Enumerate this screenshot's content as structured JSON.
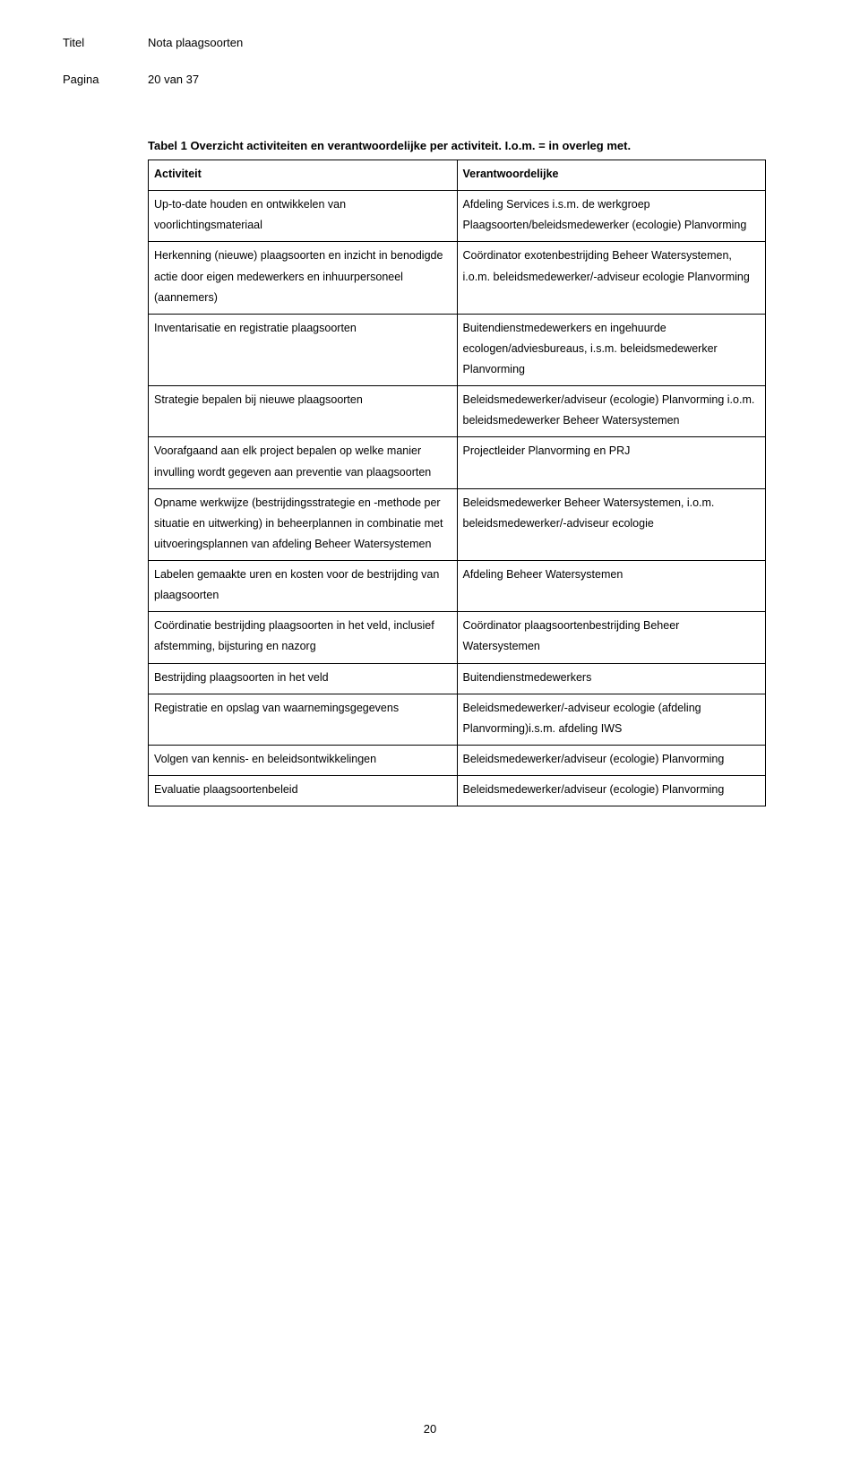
{
  "header": {
    "titel_label": "Titel",
    "titel_value": "Nota plaagsoorten",
    "pagina_label": "Pagina",
    "pagina_value": "20 van 37"
  },
  "caption": "Tabel 1 Overzicht activiteiten en verantwoordelijke per activiteit. I.o.m. = in overleg met.",
  "table": {
    "head": {
      "left": "Activiteit",
      "right": "Verantwoordelijke"
    },
    "rows": [
      {
        "left": "Up-to-date houden en ontwikkelen van voorlichtingsmateriaal",
        "right": "Afdeling Services i.s.m. de werkgroep Plaagsoorten/beleidsmedewerker (ecologie) Planvorming"
      },
      {
        "left": "Herkenning (nieuwe) plaagsoorten en inzicht in benodigde actie door eigen medewerkers en inhuurpersoneel (aannemers)",
        "right": "Coördinator exotenbestrijding Beheer Watersystemen, i.o.m. beleidsmedewerker/-adviseur ecologie Planvorming"
      },
      {
        "left": "Inventarisatie en registratie plaagsoorten",
        "right": "Buitendienstmedewerkers en ingehuurde ecologen/adviesbureaus, i.s.m. beleidsmedewerker Planvorming"
      },
      {
        "left": "Strategie bepalen bij nieuwe plaagsoorten",
        "right": "Beleidsmedewerker/adviseur (ecologie) Planvorming i.o.m. beleidsmedewerker Beheer Watersystemen"
      },
      {
        "left": "Voorafgaand aan elk project bepalen op welke manier invulling wordt gegeven aan preventie van plaagsoorten",
        "right": "Projectleider Planvorming en PRJ"
      },
      {
        "left": "Opname werkwijze (bestrijdingsstrategie en -methode per situatie en uitwerking) in beheerplannen in combinatie met uitvoeringsplannen van afdeling Beheer Watersystemen",
        "right": "Beleidsmedewerker Beheer Watersystemen, i.o.m. beleidsmedewerker/-adviseur ecologie"
      },
      {
        "left": "Labelen gemaakte uren en kosten voor de bestrijding van plaagsoorten",
        "right": "Afdeling Beheer Watersystemen"
      },
      {
        "left": "Coördinatie bestrijding plaagsoorten in het veld, inclusief afstemming, bijsturing en nazorg",
        "right": "Coördinator plaagsoortenbestrijding Beheer Watersystemen"
      },
      {
        "left": "Bestrijding plaagsoorten in het veld",
        "right": "Buitendienstmedewerkers"
      },
      {
        "left": "Registratie en opslag van waarnemingsgegevens",
        "right": "Beleidsmedewerker/-adviseur ecologie (afdeling Planvorming)i.s.m. afdeling IWS"
      },
      {
        "left": "Volgen van kennis- en beleidsontwikkelingen",
        "right": "Beleidsmedewerker/adviseur (ecologie) Planvorming"
      },
      {
        "left": "Evaluatie plaagsoortenbeleid",
        "right": "Beleidsmedewerker/adviseur (ecologie) Planvorming"
      }
    ]
  },
  "page_number": "20",
  "colors": {
    "background": "#ffffff",
    "text": "#000000",
    "border": "#000000"
  }
}
